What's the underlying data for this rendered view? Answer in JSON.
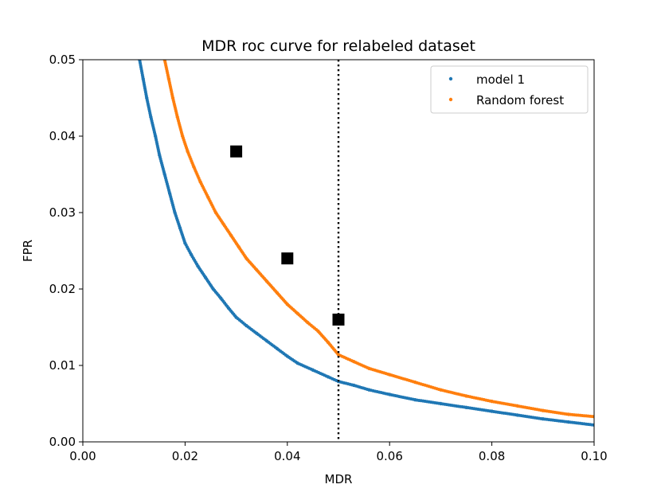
{
  "chart_data": {
    "type": "scatter",
    "title": "MDR roc curve for relabeled dataset",
    "xlabel": "MDR",
    "ylabel": "FPR",
    "xlim": [
      0.0,
      0.1
    ],
    "ylim": [
      0.0,
      0.05
    ],
    "xticks": [
      0.0,
      0.02,
      0.04,
      0.06,
      0.08,
      0.1
    ],
    "xtick_labels": [
      "0.00",
      "0.02",
      "0.04",
      "0.06",
      "0.08",
      "0.10"
    ],
    "yticks": [
      0.0,
      0.01,
      0.02,
      0.03,
      0.04,
      0.05
    ],
    "ytick_labels": [
      "0.00",
      "0.01",
      "0.02",
      "0.03",
      "0.04",
      "0.05"
    ],
    "grid": false,
    "legend_position": "top-right",
    "series": [
      {
        "name": "model 1",
        "color": "#1f77b4",
        "marker": "dot",
        "x": [
          0.0111,
          0.0118,
          0.0125,
          0.0133,
          0.0142,
          0.015,
          0.016,
          0.017,
          0.018,
          0.019,
          0.02,
          0.0212,
          0.0225,
          0.024,
          0.0255,
          0.027,
          0.0285,
          0.03,
          0.032,
          0.034,
          0.036,
          0.038,
          0.04,
          0.042,
          0.045,
          0.048,
          0.05,
          0.053,
          0.056,
          0.06,
          0.065,
          0.07,
          0.075,
          0.08,
          0.085,
          0.09,
          0.095,
          0.1
        ],
        "y": [
          0.05,
          0.0475,
          0.045,
          0.0425,
          0.04,
          0.0375,
          0.035,
          0.0325,
          0.03,
          0.028,
          0.026,
          0.0245,
          0.023,
          0.0215,
          0.02,
          0.0188,
          0.0175,
          0.0163,
          0.0152,
          0.0142,
          0.0132,
          0.0122,
          0.0112,
          0.0103,
          0.0094,
          0.0085,
          0.0079,
          0.0074,
          0.0068,
          0.0062,
          0.0055,
          0.005,
          0.0045,
          0.004,
          0.0035,
          0.003,
          0.0026,
          0.0022
        ]
      },
      {
        "name": "Random forest",
        "color": "#ff7f0e",
        "marker": "dot",
        "x": [
          0.016,
          0.0168,
          0.0176,
          0.0185,
          0.0195,
          0.0205,
          0.0217,
          0.023,
          0.0245,
          0.026,
          0.0275,
          0.029,
          0.0305,
          0.032,
          0.034,
          0.036,
          0.038,
          0.04,
          0.042,
          0.044,
          0.046,
          0.048,
          0.05,
          0.053,
          0.056,
          0.06,
          0.065,
          0.07,
          0.075,
          0.08,
          0.085,
          0.09,
          0.095,
          0.1
        ],
        "y": [
          0.05,
          0.0475,
          0.045,
          0.0425,
          0.04,
          0.038,
          0.036,
          0.034,
          0.032,
          0.03,
          0.0285,
          0.027,
          0.0255,
          0.024,
          0.0225,
          0.021,
          0.0195,
          0.018,
          0.0168,
          0.0156,
          0.0145,
          0.013,
          0.0114,
          0.0105,
          0.0096,
          0.0088,
          0.0078,
          0.0068,
          0.006,
          0.0053,
          0.0047,
          0.0041,
          0.0036,
          0.0033
        ]
      }
    ],
    "markers": [
      {
        "x": 0.03,
        "y": 0.038
      },
      {
        "x": 0.04,
        "y": 0.024
      },
      {
        "x": 0.05,
        "y": 0.016
      }
    ],
    "vline": {
      "x": 0.05,
      "style": "dotted",
      "color": "#000000"
    }
  }
}
